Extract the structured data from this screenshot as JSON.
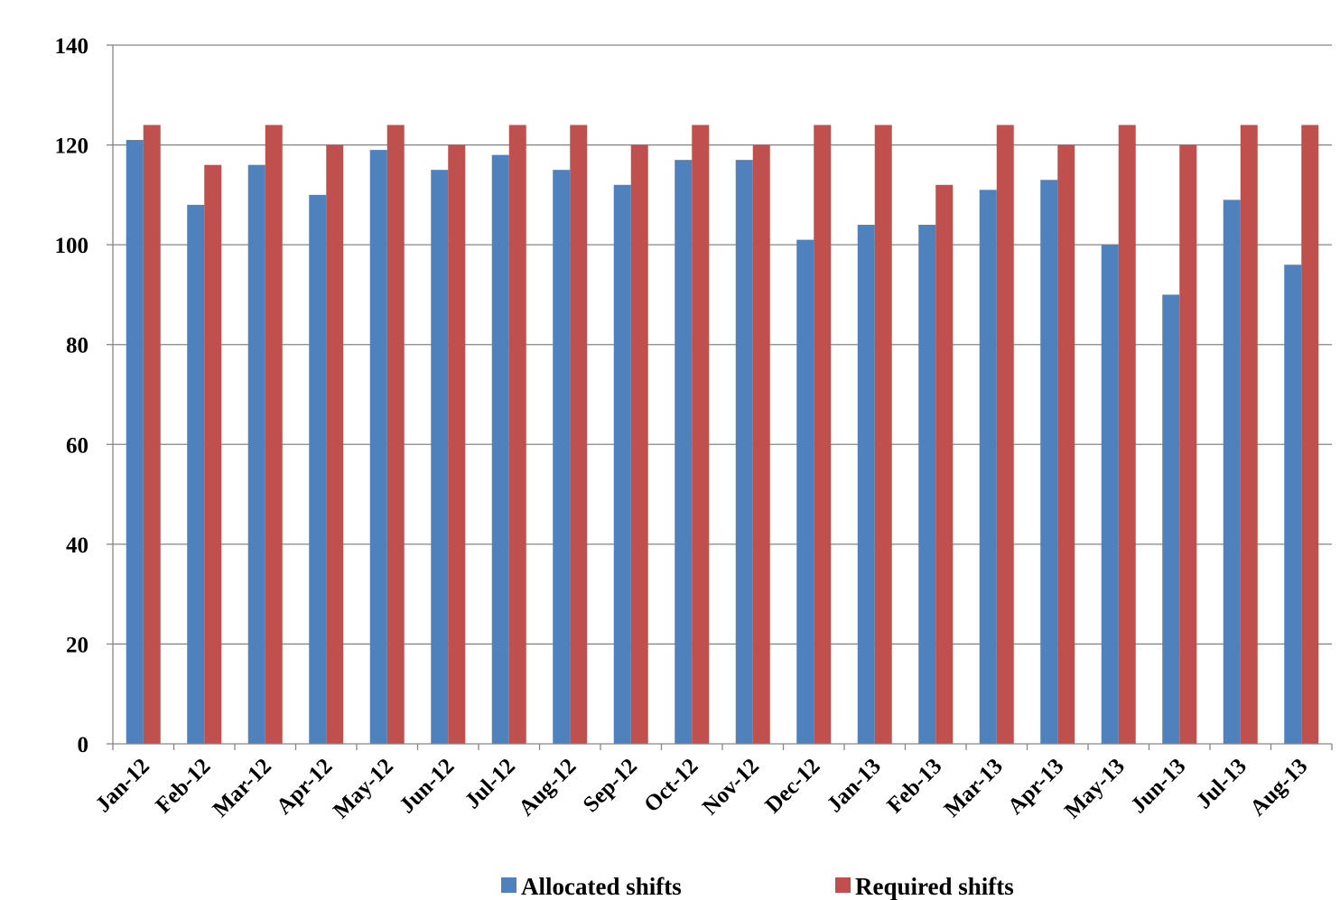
{
  "chart_data": {
    "type": "bar",
    "title": "",
    "xlabel": "",
    "ylabel": "",
    "categories": [
      "Jan-12",
      "Feb-12",
      "Mar-12",
      "Apr-12",
      "May-12",
      "Jun-12",
      "Jul-12",
      "Aug-12",
      "Sep-12",
      "Oct-12",
      "Nov-12",
      "Dec-12",
      "Jan-13",
      "Feb-13",
      "Mar-13",
      "Apr-13",
      "May-13",
      "Jun-13",
      "Jul-13",
      "Aug-13"
    ],
    "series": [
      {
        "name": "Allocated shifts",
        "color": "#4f81bd",
        "values": [
          121,
          108,
          116,
          110,
          119,
          115,
          118,
          115,
          112,
          117,
          117,
          101,
          104,
          104,
          111,
          113,
          100,
          90,
          109,
          96
        ]
      },
      {
        "name": "Required shifts",
        "color": "#c0504d",
        "values": [
          124,
          116,
          124,
          120,
          124,
          120,
          124,
          124,
          120,
          124,
          120,
          124,
          124,
          112,
          124,
          120,
          124,
          120,
          124,
          124
        ]
      }
    ],
    "ylim": [
      0,
      140
    ],
    "yticks": [
      0,
      20,
      40,
      60,
      80,
      100,
      120,
      140
    ],
    "grid": true,
    "legend_position": "bottom"
  }
}
